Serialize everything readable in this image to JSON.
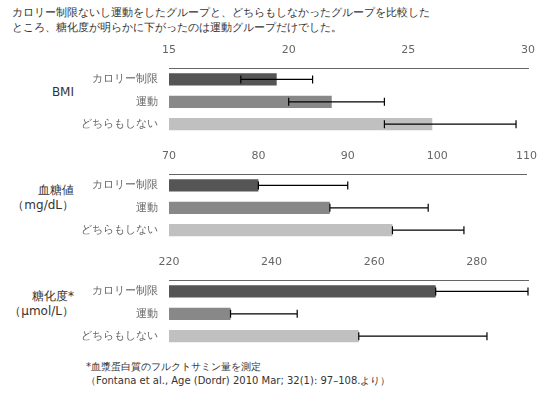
{
  "chart_data": [
    {
      "type": "bar",
      "orientation": "horizontal",
      "title": [
        "カロリー制限ないし運動をしたグループと、どちらもしなかったグループを比較した",
        "ところ、糖化度が明らかに下がったのは運動グループだけでした。"
      ],
      "ylabel": [
        "BMI"
      ],
      "categories": [
        "カロリー制限",
        "運動",
        "どちらもしない"
      ],
      "values": [
        19.5,
        21.8,
        26.0
      ],
      "error_lo": [
        1.5,
        1.8,
        2.0
      ],
      "error_hi": [
        1.5,
        2.2,
        3.5
      ],
      "colors": [
        "#555555",
        "#888888",
        "#c0c0c0"
      ],
      "xlim": [
        15,
        30
      ],
      "xticks": [
        15,
        20,
        25,
        30
      ],
      "grid": false
    },
    {
      "type": "bar",
      "orientation": "horizontal",
      "ylabel": [
        "血糖値",
        "（mg/dL）"
      ],
      "categories": [
        "カロリー制限",
        "運動",
        "どちらもしない"
      ],
      "values": [
        80.0,
        88.0,
        95.0
      ],
      "error_lo": [
        0.0,
        0.0,
        0.0
      ],
      "error_hi": [
        10.0,
        11.0,
        8.0
      ],
      "colors": [
        "#555555",
        "#888888",
        "#c0c0c0"
      ],
      "xlim": [
        70,
        110
      ],
      "xticks": [
        70,
        80,
        90,
        100,
        110
      ],
      "grid": false
    },
    {
      "type": "bar",
      "orientation": "horizontal",
      "ylabel": [
        "糖化度*",
        "（μmol/L）"
      ],
      "categories": [
        "カロリー制限",
        "運動",
        "どちらもしない"
      ],
      "values": [
        272.0,
        232.0,
        257.0
      ],
      "error_lo": [
        0.0,
        0.0,
        0.0
      ],
      "error_hi": [
        18.0,
        13.0,
        25.0
      ],
      "colors": [
        "#555555",
        "#888888",
        "#c0c0c0"
      ],
      "xlim": [
        220,
        290
      ],
      "xticks": [
        220,
        240,
        260,
        280
      ],
      "grid": false,
      "annotations": [
        "*血漿蛋白質のフルクトサミン量を測定",
        "（Fontana et al., Age (Dordr) 2010 Mar; 32(1): 97–108.より）"
      ]
    }
  ]
}
